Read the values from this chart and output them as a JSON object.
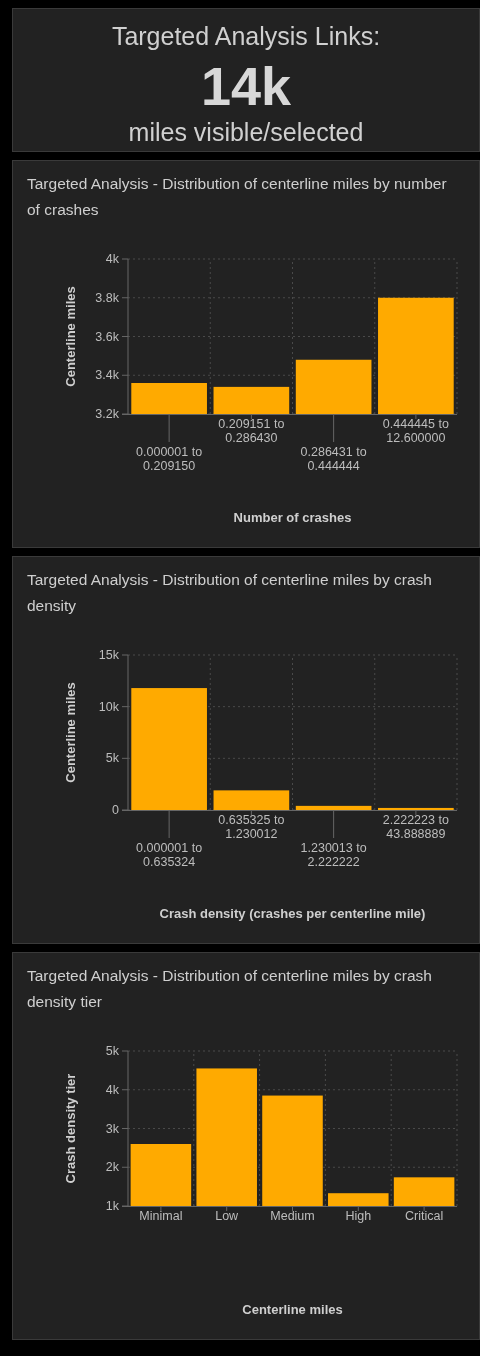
{
  "chart_data": [
    {
      "type": "other",
      "title": "Targeted Analysis Links:",
      "annotations": [
        "14k",
        "miles visible/selected"
      ]
    },
    {
      "type": "bar",
      "title": "Targeted Analysis - Distribution of centerline miles by number of crashes",
      "xlabel": "Number of crashes",
      "ylabel": "Centerline miles",
      "categories": [
        "0.000001 to 0.209150",
        "0.209151 to 0.286430",
        "0.286431 to 0.444444",
        "0.444445 to 12.600000"
      ],
      "values": [
        3360,
        3340,
        3480,
        3800
      ],
      "color": "#ffaa00",
      "ylim": [
        3200,
        4000
      ],
      "yticks": [
        {
          "value": 3200,
          "label": "3.2k"
        },
        {
          "value": 3400,
          "label": "3.4k"
        },
        {
          "value": 3600,
          "label": "3.6k"
        },
        {
          "value": 3800,
          "label": "3.8k"
        },
        {
          "value": 4000,
          "label": "4k"
        }
      ],
      "grid": true
    },
    {
      "type": "bar",
      "title": "Targeted Analysis - Distribution of centerline miles by crash density",
      "xlabel": "Crash density (crashes per centerline mile)",
      "ylabel": "Centerline miles",
      "categories": [
        "0.000001 to 0.635324",
        "0.635325 to 1.230012",
        "1.230013 to 2.222222",
        "2.222223 to 43.888889"
      ],
      "values": [
        11800,
        1900,
        400,
        200
      ],
      "color": "#ffaa00",
      "ylim": [
        0,
        15000
      ],
      "yticks": [
        0,
        {
          "value": 5000,
          "label": "5k"
        },
        {
          "value": 10000,
          "label": "10k"
        },
        {
          "value": 15000,
          "label": "15k"
        }
      ],
      "grid": true
    },
    {
      "type": "bar",
      "title": "Targeted Analysis - Distribution of centerline miles by crash density tier",
      "xlabel": "Centerline miles",
      "ylabel": "Crash density tier",
      "categories": [
        "Minimal",
        "Low",
        "Medium",
        "High",
        "Critical"
      ],
      "values": [
        2600,
        4550,
        3850,
        1330,
        1740
      ],
      "color": "#ffaa00",
      "ylim": [
        1000,
        5000
      ],
      "yticks": [
        {
          "value": 1000,
          "label": "1k"
        },
        {
          "value": 2000,
          "label": "2k"
        },
        {
          "value": 3000,
          "label": "3k"
        },
        {
          "value": 4000,
          "label": "4k"
        },
        {
          "value": 5000,
          "label": "5k"
        }
      ],
      "grid": true
    }
  ]
}
